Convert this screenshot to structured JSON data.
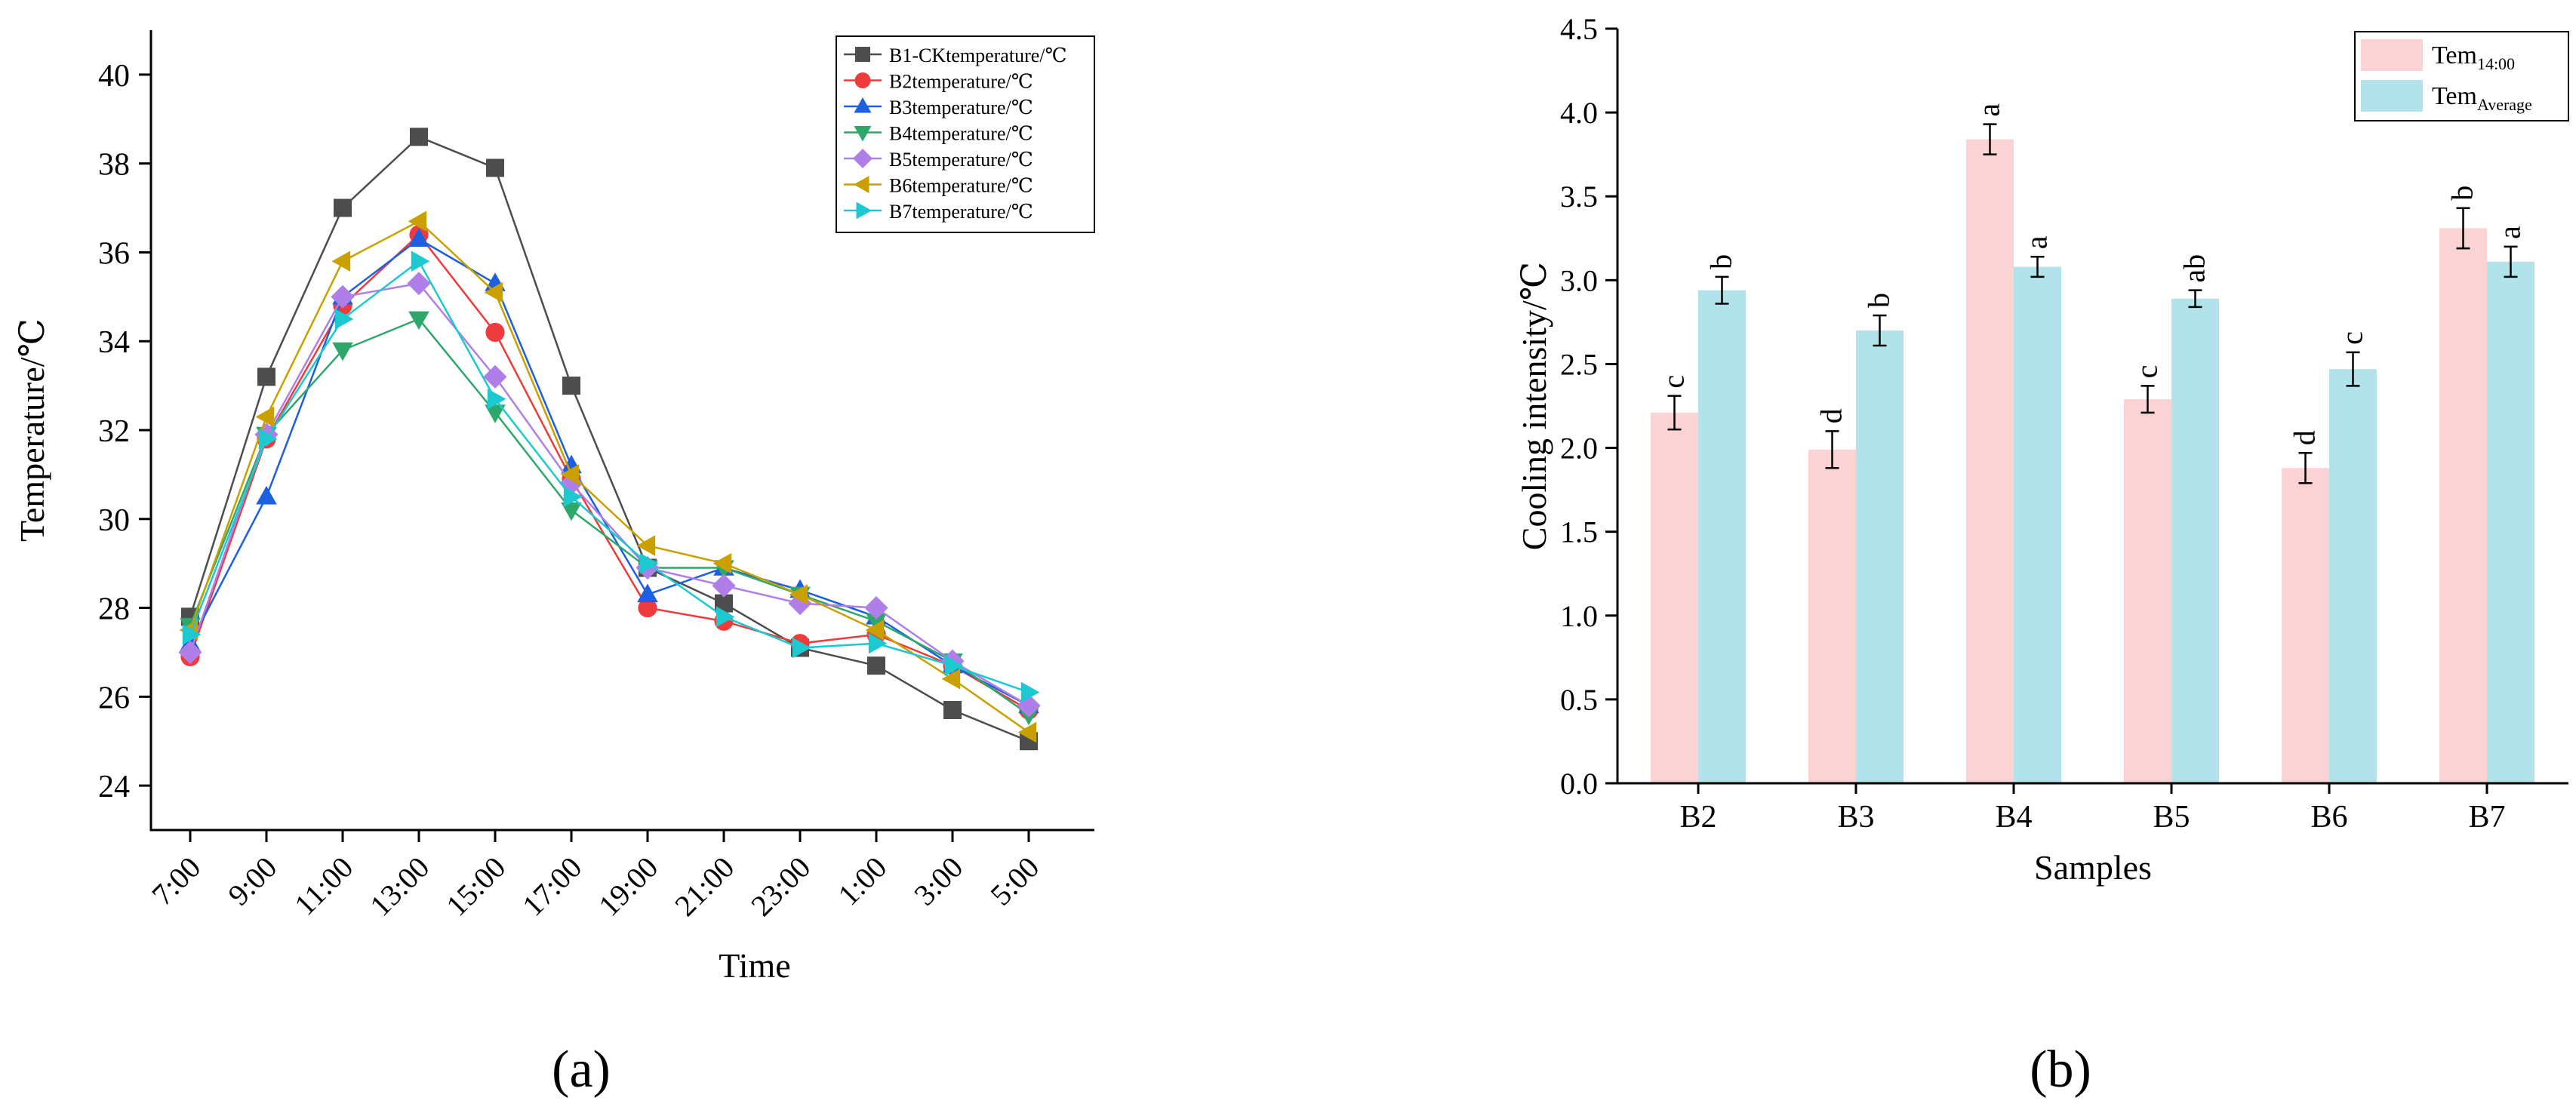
{
  "chart_data": [
    {
      "panel_label": "(a)",
      "type": "line",
      "title": "",
      "xlabel": "Time",
      "ylabel": "Temperature/℃",
      "ylim": [
        23,
        41
      ],
      "yticks": [
        24,
        26,
        28,
        30,
        32,
        34,
        36,
        38,
        40
      ],
      "categories": [
        "7:00",
        "9:00",
        "11:00",
        "13:00",
        "15:00",
        "17:00",
        "19:00",
        "21:00",
        "23:00",
        "1:00",
        "3:00",
        "5:00"
      ],
      "grid": false,
      "legend_position": "top-right",
      "series": [
        {
          "name": "B1-CKtemperature/℃",
          "color": "#4d4d4d",
          "marker": "square",
          "values": [
            27.8,
            33.2,
            37.0,
            38.6,
            37.9,
            33.0,
            28.9,
            28.1,
            27.1,
            26.7,
            25.7,
            25.0
          ]
        },
        {
          "name": "B2temperature/℃",
          "color": "#ef3b3b",
          "marker": "circle",
          "values": [
            26.9,
            31.8,
            34.8,
            36.4,
            34.2,
            30.9,
            28.0,
            27.7,
            27.2,
            27.4,
            26.7,
            25.7
          ]
        },
        {
          "name": "B3temperature/℃",
          "color": "#1e5fe0",
          "marker": "triangle-up",
          "values": [
            27.2,
            30.5,
            35.0,
            36.3,
            35.3,
            31.2,
            28.3,
            28.9,
            28.4,
            27.8,
            26.7,
            25.8
          ]
        },
        {
          "name": "B4temperature/℃",
          "color": "#2ea86a",
          "marker": "triangle-down",
          "values": [
            27.6,
            31.9,
            33.8,
            34.5,
            32.4,
            30.2,
            28.9,
            28.9,
            28.3,
            27.7,
            26.8,
            25.6
          ]
        },
        {
          "name": "B5temperature/℃",
          "color": "#b07ee8",
          "marker": "diamond",
          "values": [
            27.0,
            31.9,
            35.0,
            35.3,
            33.2,
            30.8,
            28.9,
            28.5,
            28.1,
            28.0,
            26.8,
            25.8
          ]
        },
        {
          "name": "B6temperature/℃",
          "color": "#c9a000",
          "marker": "triangle-left",
          "values": [
            27.5,
            32.3,
            35.8,
            36.7,
            35.1,
            31.0,
            29.4,
            29.0,
            28.3,
            27.5,
            26.4,
            25.2
          ]
        },
        {
          "name": "B7temperature/℃",
          "color": "#1cc9d1",
          "marker": "triangle-right",
          "values": [
            27.4,
            31.8,
            34.5,
            35.8,
            32.7,
            30.5,
            29.0,
            27.8,
            27.1,
            27.2,
            26.7,
            26.1
          ]
        }
      ]
    },
    {
      "panel_label": "(b)",
      "type": "bar",
      "title": "",
      "xlabel": "Samples",
      "ylabel": "Cooling intensity/℃",
      "ylim": [
        0,
        4.5
      ],
      "yticks": [
        "0.0",
        "0.5",
        "1.0",
        "1.5",
        "2.0",
        "2.5",
        "3.0",
        "3.5",
        "4.0",
        "4.5"
      ],
      "categories": [
        "B2",
        "B3",
        "B4",
        "B5",
        "B6",
        "B7"
      ],
      "grid": false,
      "legend_position": "top-right",
      "series": [
        {
          "name_main": "Tem",
          "name_sub": "14:00",
          "color": "#fbd3d4",
          "values": [
            2.21,
            1.99,
            3.84,
            2.29,
            1.88,
            3.31
          ],
          "errors": [
            0.1,
            0.11,
            0.09,
            0.08,
            0.09,
            0.12
          ],
          "letters": [
            "c",
            "d",
            "a",
            "c",
            "d",
            "b"
          ]
        },
        {
          "name_main": "Tem",
          "name_sub": "Average",
          "color": "#b3e3ea",
          "values": [
            2.94,
            2.7,
            3.08,
            2.89,
            2.47,
            3.11
          ],
          "errors": [
            0.08,
            0.09,
            0.06,
            0.05,
            0.1,
            0.09
          ],
          "letters": [
            "b",
            "b",
            "a",
            "ab",
            "c",
            "a"
          ]
        }
      ]
    }
  ]
}
